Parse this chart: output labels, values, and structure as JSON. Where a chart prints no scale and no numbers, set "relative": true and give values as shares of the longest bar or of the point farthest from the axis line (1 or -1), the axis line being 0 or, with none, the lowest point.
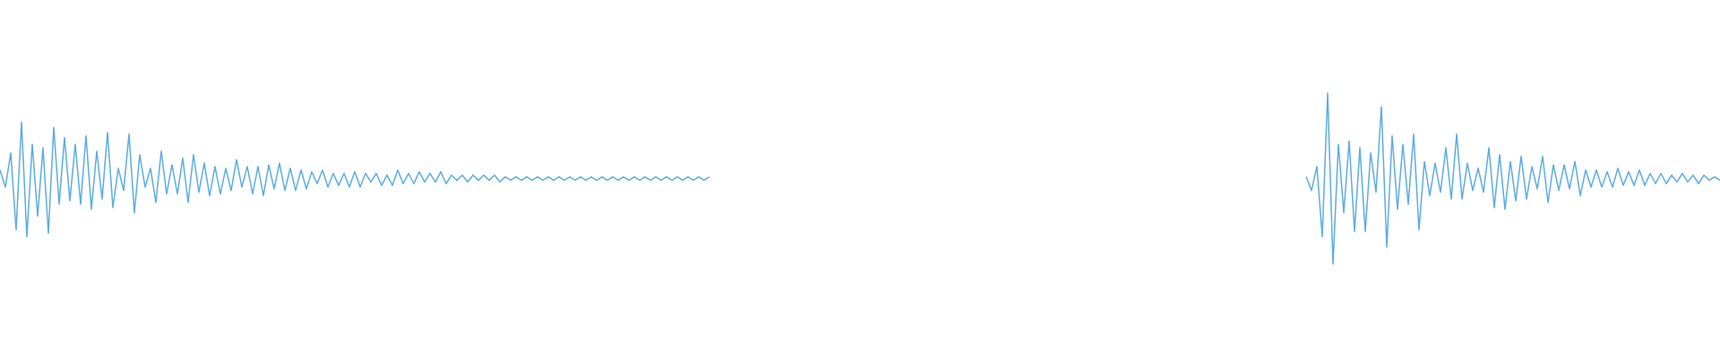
{
  "chart_data": {
    "type": "line",
    "relative": true,
    "categories": [
      null,
      null,
      null,
      null,
      null,
      null,
      null,
      null,
      null,
      null,
      null,
      null,
      null,
      null,
      null,
      null,
      null,
      null,
      null,
      null,
      null,
      null,
      null,
      null,
      null,
      null,
      null,
      null,
      null,
      null,
      null,
      null,
      null,
      null,
      null,
      null,
      null,
      null,
      null,
      null,
      null,
      null,
      null,
      null,
      null,
      null,
      null,
      null,
      null,
      null,
      null,
      null,
      null,
      null,
      null,
      null,
      null,
      null,
      null,
      null,
      null,
      null,
      null,
      null,
      null,
      null,
      null,
      null,
      null,
      null,
      null,
      null,
      null,
      null,
      null,
      null,
      null,
      null,
      null,
      null,
      null,
      null,
      null,
      null,
      null,
      null,
      null,
      null,
      null,
      null,
      null,
      null,
      null,
      null,
      null,
      null,
      null,
      null,
      null,
      null,
      null,
      null,
      null,
      null,
      null,
      null,
      null,
      null,
      null,
      null,
      null,
      null,
      null,
      null,
      null,
      null,
      null,
      null,
      null,
      null,
      null,
      null,
      null,
      null,
      null,
      null,
      null,
      null,
      null,
      null,
      null,
      null,
      null,
      null,
      null,
      null,
      null,
      null,
      null,
      null,
      null,
      null,
      null,
      null,
      null,
      null,
      null,
      null,
      null,
      null,
      null,
      null,
      null,
      null,
      null,
      null,
      null,
      null,
      null,
      null,
      null,
      null,
      null,
      null,
      null,
      null,
      null,
      null,
      null,
      null,
      null,
      null,
      null,
      null,
      null,
      null,
      null,
      null,
      null,
      null,
      null,
      null,
      null,
      null,
      null,
      null,
      null,
      null,
      null,
      null,
      null,
      null,
      null,
      null,
      null,
      null,
      null,
      null,
      null,
      null,
      null,
      null,
      null,
      null,
      null,
      null,
      null,
      null,
      null,
      null,
      null,
      null,
      null,
      null,
      null,
      null,
      null,
      null,
      null,
      null,
      null,
      null,
      null,
      null,
      null,
      null,
      null,
      null,
      null,
      null,
      null,
      null,
      null,
      null,
      null,
      null,
      null,
      null,
      null,
      null,
      null,
      null,
      null,
      null,
      null,
      null,
      null,
      null,
      null,
      null,
      null,
      null,
      null,
      null,
      null,
      null,
      null,
      null,
      null,
      null,
      null,
      null,
      null,
      null,
      null,
      null,
      null,
      null,
      null,
      null,
      null,
      null,
      null,
      null,
      null,
      null,
      null,
      null,
      null,
      null,
      null,
      null,
      null,
      null,
      null,
      null,
      null,
      null,
      null,
      null,
      null,
      null,
      null,
      null,
      null,
      null,
      null,
      null,
      null,
      null,
      null,
      null,
      null,
      null,
      null,
      null,
      null,
      null,
      null,
      null,
      null,
      null,
      null,
      null,
      null,
      null,
      null,
      null,
      null,
      null,
      null
    ],
    "series": [
      {
        "color": "#5dade2",
        "values": [
          0.55,
          0.45,
          0.65,
          0.2,
          0.83,
          0.16,
          0.7,
          0.28,
          0.68,
          0.18,
          0.8,
          0.35,
          0.74,
          0.37,
          0.7,
          0.35,
          0.75,
          0.32,
          0.66,
          0.38,
          0.77,
          0.33,
          0.56,
          0.43,
          0.76,
          0.3,
          0.64,
          0.45,
          0.56,
          0.36,
          0.66,
          0.41,
          0.58,
          0.41,
          0.62,
          0.36,
          0.64,
          0.42,
          0.59,
          0.4,
          0.57,
          0.41,
          0.56,
          0.43,
          0.61,
          0.45,
          0.57,
          0.41,
          0.57,
          0.4,
          0.58,
          0.44,
          0.59,
          0.43,
          0.56,
          0.43,
          0.55,
          0.44,
          0.54,
          0.47,
          0.55,
          0.45,
          0.53,
          0.46,
          0.53,
          0.45,
          0.54,
          0.45,
          0.53,
          0.48,
          0.53,
          0.46,
          0.52,
          0.46,
          0.55,
          0.47,
          0.53,
          0.47,
          0.54,
          0.48,
          0.53,
          0.48,
          0.54,
          0.47,
          0.52,
          0.49,
          0.52,
          0.48,
          0.52,
          0.49,
          0.52,
          0.49,
          0.52,
          0.48,
          0.51,
          0.49,
          0.51,
          0.49,
          0.51,
          0.49,
          0.51,
          0.49,
          0.51,
          0.49,
          0.51,
          0.49,
          0.51,
          0.49,
          0.51,
          0.49,
          0.51,
          0.49,
          0.51,
          0.49,
          0.51,
          0.49,
          0.51,
          0.49,
          0.51,
          0.49,
          0.51,
          0.49,
          0.51,
          0.49,
          0.51,
          0.49,
          0.51,
          0.49,
          0.51,
          0.49,
          0.51,
          0.49,
          0.51,
          null,
          null,
          null,
          null,
          null,
          null,
          null,
          null,
          null,
          null,
          null,
          null,
          null,
          null,
          null,
          null,
          null,
          null,
          null,
          null,
          null,
          null,
          null,
          null,
          null,
          null,
          null,
          null,
          null,
          null,
          null,
          null,
          null,
          null,
          null,
          null,
          null,
          null,
          null,
          null,
          null,
          null,
          null,
          null,
          null,
          null,
          null,
          null,
          null,
          null,
          null,
          null,
          null,
          null,
          null,
          null,
          null,
          null,
          null,
          null,
          null,
          null,
          null,
          null,
          null,
          null,
          null,
          null,
          null,
          null,
          null,
          null,
          null,
          null,
          null,
          null,
          null,
          null,
          null,
          null,
          null,
          null,
          null,
          null,
          null,
          null,
          null,
          null,
          null,
          null,
          null,
          null,
          null,
          null,
          null,
          null,
          null,
          null,
          null,
          null,
          null,
          null,
          null,
          null,
          null,
          null,
          null,
          null,
          null,
          null,
          null,
          null,
          null,
          null,
          null,
          null,
          null,
          null,
          null,
          null,
          null,
          null,
          null,
          null,
          null,
          null,
          null,
          null,
          null,
          null,
          null,
          null,
          null,
          null,
          null,
          null,
          null,
          null,
          null,
          null,
          null,
          null,
          null,
          null,
          null,
          null,
          null,
          null,
          null,
          null,
          null,
          null,
          null,
          null,
          null,
          null,
          null,
          null,
          null,
          null,
          null,
          null,
          null,
          null,
          null,
          null,
          null,
          null,
          null,
          null,
          null,
          null,
          null,
          null,
          null,
          null,
          null,
          null,
          null,
          null,
          null,
          null,
          null,
          null,
          null,
          null,
          null,
          null
        ]
      },
      {
        "color": "#5dade2",
        "values": [
          null,
          null,
          null,
          null,
          null,
          null,
          null,
          null,
          null,
          null,
          null,
          null,
          null,
          null,
          null,
          null,
          null,
          null,
          null,
          null,
          null,
          null,
          null,
          null,
          null,
          null,
          null,
          null,
          null,
          null,
          null,
          null,
          null,
          null,
          null,
          null,
          null,
          null,
          null,
          null,
          null,
          null,
          null,
          null,
          null,
          null,
          null,
          null,
          null,
          null,
          null,
          null,
          null,
          null,
          null,
          null,
          null,
          null,
          null,
          null,
          null,
          null,
          null,
          null,
          null,
          null,
          null,
          null,
          null,
          null,
          null,
          null,
          null,
          null,
          null,
          null,
          null,
          null,
          null,
          null,
          null,
          null,
          null,
          null,
          null,
          null,
          null,
          null,
          null,
          null,
          null,
          null,
          null,
          null,
          null,
          null,
          null,
          null,
          null,
          null,
          null,
          null,
          null,
          null,
          null,
          null,
          null,
          null,
          null,
          null,
          null,
          null,
          null,
          null,
          null,
          null,
          null,
          null,
          null,
          null,
          null,
          null,
          null,
          null,
          null,
          null,
          null,
          null,
          null,
          null,
          null,
          null,
          null,
          null,
          null,
          null,
          null,
          null,
          null,
          null,
          null,
          null,
          null,
          null,
          null,
          null,
          null,
          null,
          null,
          null,
          null,
          null,
          null,
          null,
          null,
          null,
          null,
          null,
          null,
          null,
          null,
          null,
          null,
          null,
          null,
          null,
          null,
          null,
          null,
          null,
          null,
          null,
          null,
          null,
          null,
          null,
          null,
          null,
          null,
          null,
          null,
          null,
          null,
          null,
          null,
          null,
          null,
          null,
          null,
          null,
          null,
          null,
          null,
          null,
          null,
          null,
          null,
          null,
          null,
          null,
          null,
          null,
          null,
          null,
          null,
          null,
          null,
          null,
          null,
          null,
          null,
          null,
          null,
          null,
          null,
          null,
          null,
          null,
          null,
          null,
          null,
          null,
          null,
          null,
          null,
          null,
          null,
          null,
          null,
          null,
          null,
          null,
          null,
          null,
          null,
          null,
          null,
          null,
          null,
          null,
          null,
          null,
          null,
          0.51,
          0.43,
          0.57,
          0.16,
          1.0,
          0.0,
          0.7,
          0.3,
          0.72,
          0.19,
          0.68,
          0.19,
          0.65,
          0.42,
          0.92,
          0.1,
          0.75,
          0.32,
          0.7,
          0.35,
          0.76,
          0.2,
          0.6,
          0.4,
          0.59,
          0.42,
          0.68,
          0.38,
          0.76,
          0.38,
          0.59,
          0.43,
          0.56,
          0.42,
          0.68,
          0.33,
          0.64,
          0.32,
          0.6,
          0.37,
          0.63,
          0.38,
          0.57,
          0.44,
          0.63,
          0.36,
          0.58,
          0.43,
          0.58,
          0.44,
          0.6,
          0.4,
          0.55,
          0.45,
          0.55,
          0.45,
          0.54,
          0.45,
          0.56,
          0.46,
          0.54,
          0.46,
          0.55,
          0.46,
          0.53,
          0.47,
          0.53,
          0.47,
          0.52,
          0.48,
          0.53,
          0.48,
          0.52,
          0.47,
          0.52,
          0.49,
          0.51,
          0.49
        ]
      }
    ]
  }
}
